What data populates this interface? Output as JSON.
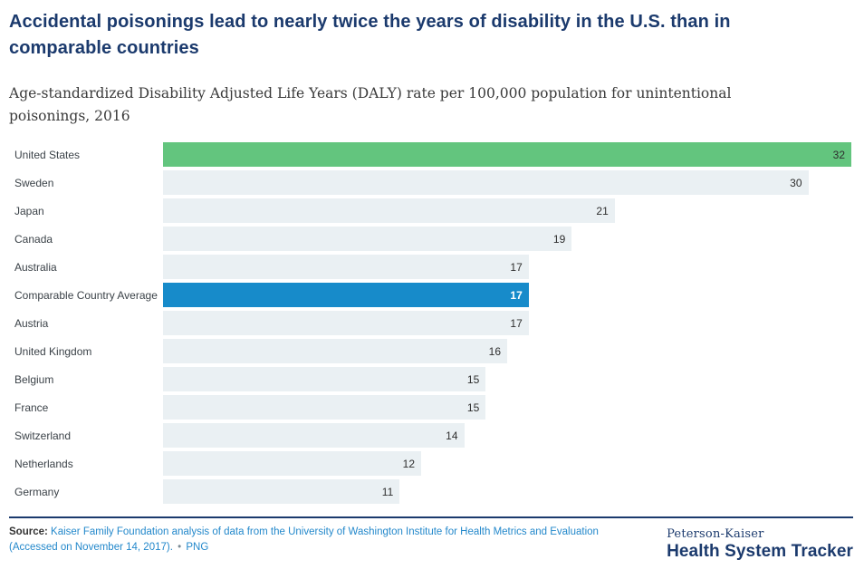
{
  "theme": {
    "brand_navy": "#1b3a6d",
    "link_blue": "#2388cb",
    "text_dark": "#3b4248"
  },
  "header": {
    "title": "Accidental poisonings lead to nearly twice the years of disability in the U.S. than in comparable countries",
    "subtitle": "Age-standardized Disability Adjusted Life Years (DALY) rate per 100,000 population for unintentional poisonings, 2016"
  },
  "chart_data": {
    "type": "bar",
    "orientation": "horizontal",
    "title": "Accidental poisonings lead to nearly twice the years of disability in the U.S. than in comparable countries",
    "subtitle": "Age-standardized Disability Adjusted Life Years (DALY) rate per 100,000 population for unintentional poisonings, 2016",
    "categories": [
      "United States",
      "Sweden",
      "Japan",
      "Canada",
      "Australia",
      "Comparable Country Average",
      "Austria",
      "United Kingdom",
      "Belgium",
      "France",
      "Switzerland",
      "Netherlands",
      "Germany"
    ],
    "values": [
      32,
      30,
      21,
      19,
      17,
      17,
      17,
      16,
      15,
      15,
      14,
      12,
      11
    ],
    "entries": [
      {
        "country": "United States",
        "value": 32,
        "style": "us"
      },
      {
        "country": "Sweden",
        "value": 30,
        "style": "default"
      },
      {
        "country": "Japan",
        "value": 21,
        "style": "default"
      },
      {
        "country": "Canada",
        "value": 19,
        "style": "default"
      },
      {
        "country": "Australia",
        "value": 17,
        "style": "default"
      },
      {
        "country": "Comparable Country Average",
        "value": 17,
        "style": "average"
      },
      {
        "country": "Austria",
        "value": 17,
        "style": "default"
      },
      {
        "country": "United Kingdom",
        "value": 16,
        "style": "default"
      },
      {
        "country": "Belgium",
        "value": 15,
        "style": "default"
      },
      {
        "country": "France",
        "value": 15,
        "style": "default"
      },
      {
        "country": "Switzerland",
        "value": 14,
        "style": "default"
      },
      {
        "country": "Netherlands",
        "value": 12,
        "style": "default"
      },
      {
        "country": "Germany",
        "value": 11,
        "style": "default"
      }
    ],
    "xlim": [
      0,
      32
    ],
    "value_labels": "inside-end",
    "grid": false,
    "legend": false,
    "colors": {
      "bar_us": "#63c57e",
      "bar_average": "#178bca",
      "bar_default": "#eaf0f3",
      "value_text": "#2e2e2e",
      "value_text_on_average": "#ffffff"
    }
  },
  "footer": {
    "source_label": "Source:",
    "source_link": "Kaiser Family Foundation analysis of data from the University of Washington Institute for Health Metrics and Evaluation (Accessed on November 14, 2017).",
    "separator": "•",
    "png_link": "PNG",
    "logo_top": "Peterson-Kaiser",
    "logo_bottom": "Health System Tracker"
  }
}
